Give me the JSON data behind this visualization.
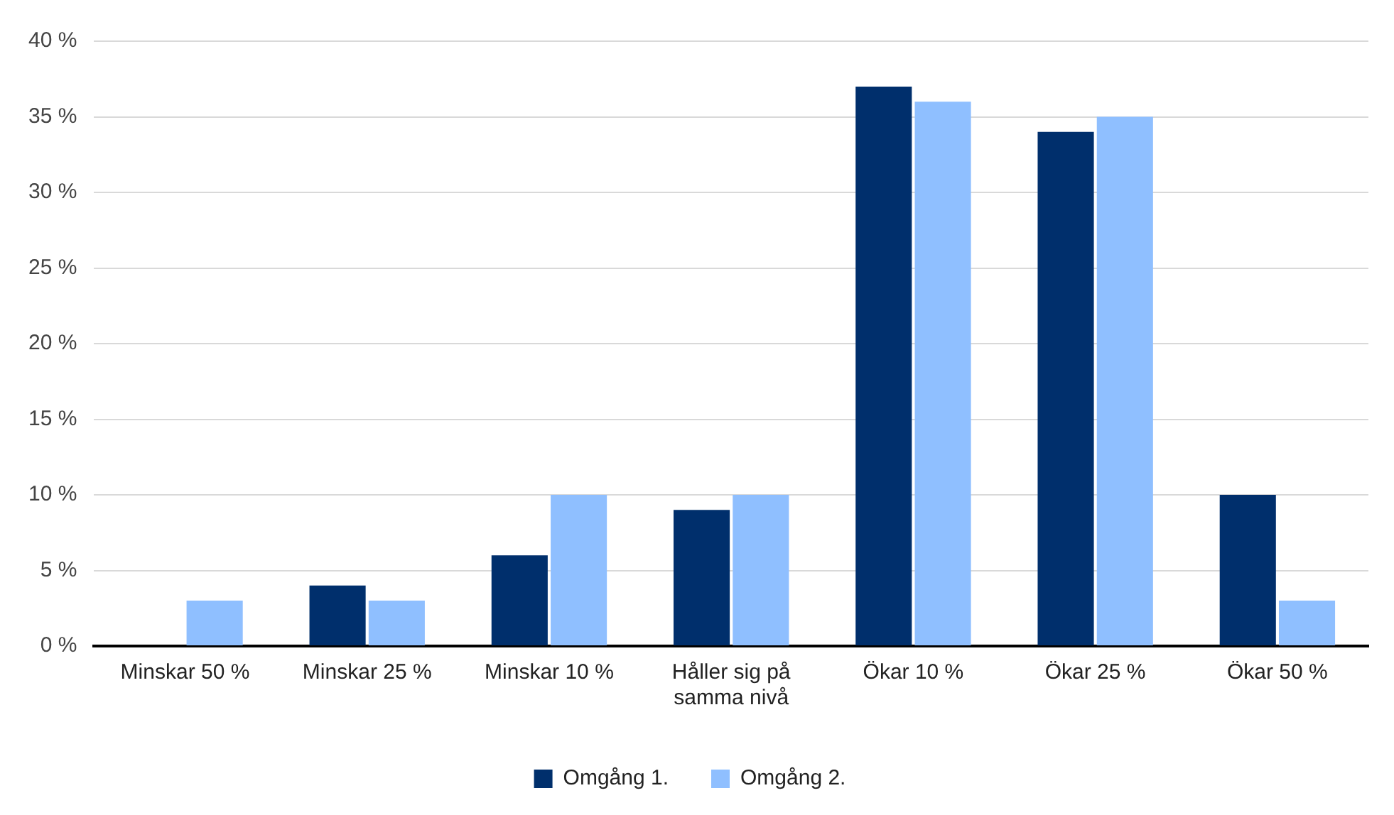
{
  "chart_data": {
    "type": "bar",
    "categories": [
      "Minskar 50 %",
      "Minskar 25 %",
      "Minskar 10 %",
      "Håller sig på samma nivå",
      "Ökar 10 %",
      "Ökar 25 %",
      "Ökar 50 %"
    ],
    "series": [
      {
        "name": "Omgång 1.",
        "color": "#002f6c",
        "values": [
          0,
          4,
          6,
          9,
          37,
          34,
          10
        ]
      },
      {
        "name": "Omgång 2.",
        "color": "#8fbfff",
        "values": [
          3,
          3,
          10,
          10,
          36,
          35,
          3
        ]
      }
    ],
    "ylim": [
      0,
      40
    ],
    "yticks": [
      {
        "value": 0,
        "label": "0 %"
      },
      {
        "value": 5,
        "label": "5 %"
      },
      {
        "value": 10,
        "label": "10 %"
      },
      {
        "value": 15,
        "label": "15 %"
      },
      {
        "value": 20,
        "label": "20 %"
      },
      {
        "value": 25,
        "label": "25 %"
      },
      {
        "value": 30,
        "label": "30 %"
      },
      {
        "value": 35,
        "label": "35 %"
      },
      {
        "value": 40,
        "label": "40 %"
      }
    ],
    "grid": "y",
    "legend": "bottom"
  }
}
